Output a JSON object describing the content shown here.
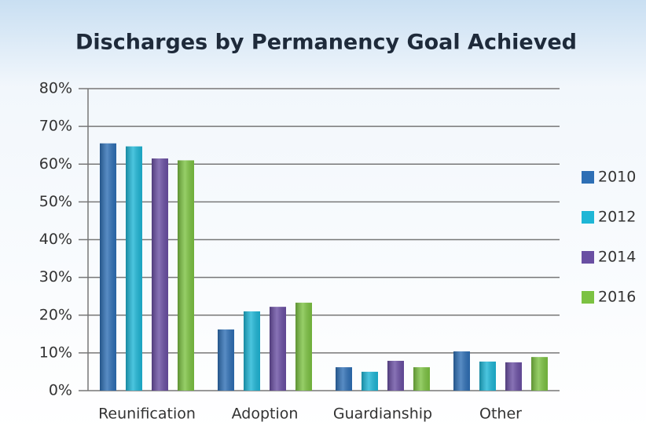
{
  "chart_data": {
    "type": "bar",
    "title": "Discharges by Permanency Goal Achieved",
    "categories": [
      "Reunification",
      "Adoption",
      "Guardianship",
      "Other"
    ],
    "series": [
      {
        "name": "2010",
        "color": "#2e6fb5",
        "values": [
          65.5,
          16.2,
          6.2,
          10.4
        ]
      },
      {
        "name": "2012",
        "color": "#1eb6d6",
        "values": [
          64.7,
          21,
          5,
          7.7
        ]
      },
      {
        "name": "2014",
        "color": "#6a4fa3",
        "values": [
          61.5,
          22.2,
          7.9,
          7.5
        ]
      },
      {
        "name": "2016",
        "color": "#7cc242",
        "values": [
          61,
          23.3,
          6.2,
          8.9
        ]
      }
    ],
    "ylim": [
      0,
      80
    ],
    "yticks": [
      {
        "value": 0,
        "label": "0%"
      },
      {
        "value": 10,
        "label": "10%"
      },
      {
        "value": 20,
        "label": "20%"
      },
      {
        "value": 30,
        "label": "30%"
      },
      {
        "value": 40,
        "label": "40%"
      },
      {
        "value": 50,
        "label": "50%"
      },
      {
        "value": 60,
        "label": "60%"
      },
      {
        "value": 70,
        "label": "70%"
      },
      {
        "value": 80,
        "label": "80%"
      }
    ],
    "grid": true,
    "legend": "right"
  }
}
